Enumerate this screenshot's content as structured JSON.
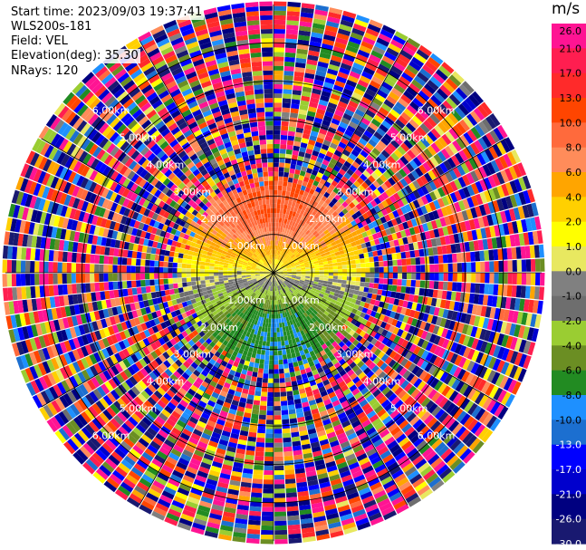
{
  "info": {
    "start_time": "Start time: 2023/09/03 19:37:41",
    "station": "WLS200s-181",
    "field": "Field: VEL",
    "elevation": "Elevation(deg): 35.30",
    "nrays": "NRays: 120"
  },
  "colorbar": {
    "unit": "m/s",
    "levels": [
      "26.0",
      "21.0",
      "17.0",
      "13.0",
      "10.0",
      "8.0",
      "6.0",
      "4.0",
      "2.0",
      "1.0",
      "0.0",
      "-1.0",
      "-2.0",
      "-4.0",
      "-6.0",
      "-8.0",
      "-10.0",
      "-13.0",
      "-17.0",
      "-21.0",
      "-26.0",
      "-30.0"
    ],
    "colors": [
      "#ff1493",
      "#ff1e50",
      "#ff2a2a",
      "#ff4500",
      "#ff6a3c",
      "#ff8c5a",
      "#ffa500",
      "#ffd000",
      "#ffff00",
      "#e8e860",
      "#808080",
      "#6e6e6e",
      "#9acd32",
      "#6b8e23",
      "#228b22",
      "#1e90ff",
      "#1c6fd0",
      "#0000ff",
      "#0000cd",
      "#000080",
      "#191970",
      "#0b0b4a"
    ],
    "label_colors": [
      "#000000",
      "#000000",
      "#000000",
      "#000000",
      "#000000",
      "#000000",
      "#000000",
      "#000000",
      "#000000",
      "#000000",
      "#000000",
      "#000000",
      "#000000",
      "#000000",
      "#000000",
      "#000000",
      "#000000",
      "#ffffff",
      "#ffffff",
      "#ffffff",
      "#ffffff",
      "#ffffff"
    ]
  },
  "chart_data": {
    "type": "heatmap",
    "projection": "polar PPI (plan position indicator)",
    "field": "VEL",
    "units": "m/s",
    "nrays": 120,
    "elevation_deg": 35.3,
    "range_rings_km": [
      1.0,
      2.0,
      3.0,
      4.0,
      5.0,
      6.0
    ],
    "range_ring_labels": [
      "1.00km",
      "2.00km",
      "3.00km",
      "4.00km",
      "5.00km",
      "6.00km"
    ],
    "max_range_km": 7.0,
    "spoke_directions_deg": [
      0,
      30,
      60,
      90,
      120,
      150,
      180,
      210,
      240,
      270,
      300,
      330
    ],
    "velocity_pattern": {
      "north_sector_m_s": 10.0,
      "east_west_sector_m_s": 1.0,
      "south_sector_m_s": -8.0,
      "clean_signal_range_km": 2.2,
      "noise_beyond_km": 2.8
    },
    "colorbar_bounds": [
      -30.0,
      26.0
    ],
    "grid": true
  }
}
